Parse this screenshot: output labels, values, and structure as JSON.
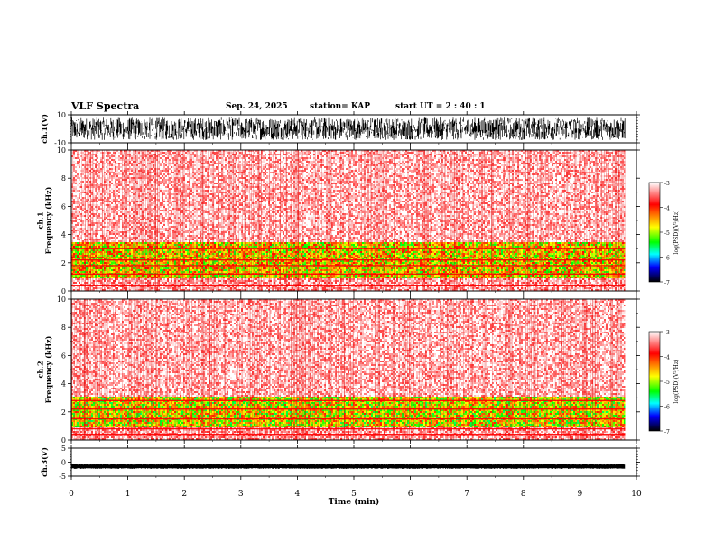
{
  "header": {
    "title": "VLF Spectra",
    "date": "Sep. 24, 2025",
    "station": "station= KAP",
    "start": "start  UT =   2 : 40 : 1"
  },
  "colorbar": {
    "label": "log(PSD)(V²/Hz)",
    "ticks": [
      "-3",
      "-4",
      "-5",
      "-6",
      "-7"
    ],
    "colors": [
      "#ffffff",
      "#ff0000",
      "#ffff00",
      "#00ff00",
      "#00ffff",
      "#0000ff",
      "#000000"
    ]
  },
  "chart_data": [
    {
      "type": "line",
      "name": "ch1-waveform",
      "ylabel": "ch.1(V)",
      "ylim": [
        -10,
        10
      ],
      "yticks": [
        "10",
        "-10"
      ],
      "description_values": {
        "typical_amplitude_V": [
          -8,
          8
        ]
      }
    },
    {
      "type": "heatmap",
      "name": "ch1-spectrogram",
      "ylabel": "ch.1\nFrequency (kHz)",
      "ylim": [
        0,
        10
      ],
      "yticks": [
        "0",
        "2",
        "4",
        "6",
        "8",
        "10"
      ],
      "bands": [
        {
          "from_khz": 0.0,
          "to_khz": 1.0,
          "level": -3.3
        },
        {
          "from_khz": 1.0,
          "to_khz": 3.5,
          "level": -4.7
        },
        {
          "from_khz": 3.5,
          "to_khz": 10.0,
          "level": -3.2
        }
      ],
      "lines_khz": [
        1.2,
        1.8,
        2.2,
        3.0,
        0.4
      ]
    },
    {
      "type": "heatmap",
      "name": "ch2-spectrogram",
      "ylabel": "ch.2\nFrequency (kHz)",
      "ylim": [
        0,
        10
      ],
      "yticks": [
        "0",
        "2",
        "4",
        "6",
        "8",
        "10"
      ],
      "bands": [
        {
          "from_khz": 0.0,
          "to_khz": 1.0,
          "level": -3.3
        },
        {
          "from_khz": 1.0,
          "to_khz": 3.2,
          "level": -4.8
        },
        {
          "from_khz": 3.2,
          "to_khz": 10.0,
          "level": -3.2
        }
      ],
      "lines_khz": [
        0.8,
        1.5,
        2.2,
        2.8,
        0.4
      ]
    },
    {
      "type": "line",
      "name": "ch3-waveform",
      "ylabel": "ch.3(V)",
      "ylim": [
        -5,
        5
      ],
      "yticks": [
        "5",
        "0",
        "-5"
      ],
      "description_values": {
        "offset_V": -1.5
      }
    }
  ],
  "xaxis": {
    "label": "Time (min)",
    "ticks": [
      "0",
      "1",
      "2",
      "3",
      "4",
      "5",
      "6",
      "7",
      "8",
      "9",
      "10"
    ],
    "xlim": [
      0,
      10
    ],
    "data_end_min": 9.8
  }
}
